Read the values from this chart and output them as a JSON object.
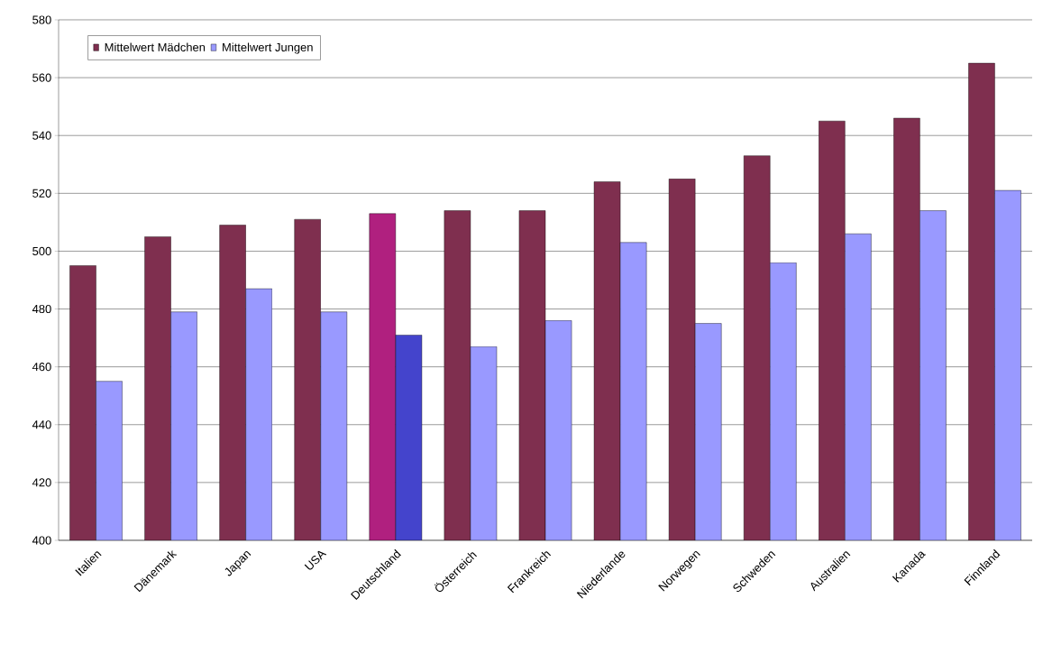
{
  "chart_data": {
    "type": "bar",
    "categories": [
      "Italien",
      "Dänemark",
      "Japan",
      "USA",
      "Deutschland",
      "Österreich",
      "Frankreich",
      "Niederlande",
      "Norwegen",
      "Schweden",
      "Australien",
      "Kanada",
      "Finnland"
    ],
    "series": [
      {
        "name": "Mittelwert Mädchen",
        "color": "#7f2f4f",
        "colors": [
          "#7f2f4f",
          "#7f2f4f",
          "#7f2f4f",
          "#7f2f4f",
          "#b0207f",
          "#7f2f4f",
          "#7f2f4f",
          "#7f2f4f",
          "#7f2f4f",
          "#7f2f4f",
          "#7f2f4f",
          "#7f2f4f",
          "#7f2f4f"
        ],
        "values": [
          495,
          505,
          509,
          511,
          513,
          514,
          514,
          524,
          525,
          533,
          545,
          546,
          565
        ]
      },
      {
        "name": "Mittelwert Jungen",
        "color": "#9999ff",
        "colors": [
          "#9999ff",
          "#9999ff",
          "#9999ff",
          "#9999ff",
          "#4444cc",
          "#9999ff",
          "#9999ff",
          "#9999ff",
          "#9999ff",
          "#9999ff",
          "#9999ff",
          "#9999ff",
          "#9999ff"
        ],
        "values": [
          455,
          479,
          487,
          479,
          471,
          467,
          476,
          503,
          475,
          496,
          506,
          514,
          521
        ]
      }
    ],
    "ylim": [
      400,
      580
    ],
    "yticks": [
      400,
      420,
      440,
      460,
      480,
      500,
      520,
      540,
      560,
      580
    ],
    "grid": "y",
    "legend": "top left"
  }
}
